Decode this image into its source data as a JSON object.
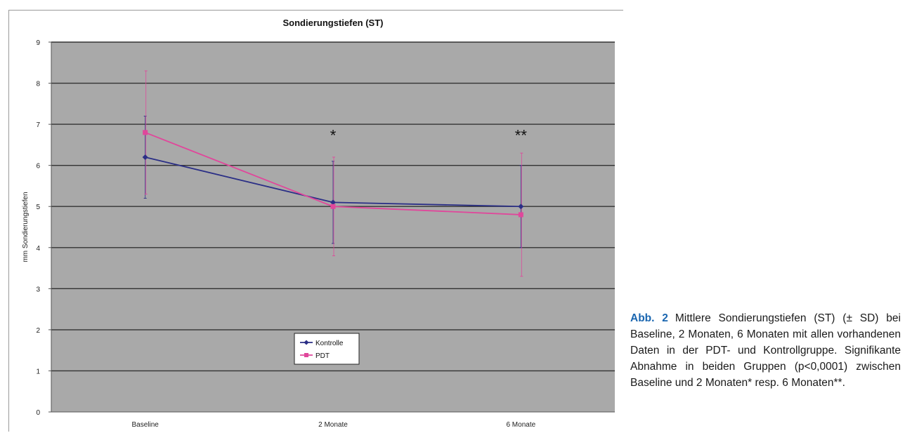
{
  "chart_data": {
    "type": "line",
    "title": "Sondierungstiefen (ST)",
    "xlabel": "",
    "ylabel": "mm Sondierungstiefen",
    "categories": [
      "Baseline",
      "2 Monate",
      "6 Monate"
    ],
    "ylim": [
      0,
      9
    ],
    "yticks": [
      "0",
      "1",
      "2",
      "3",
      "4",
      "5",
      "6",
      "7",
      "8",
      "9"
    ],
    "grid": true,
    "legend_position": "bottom-center",
    "annotations": [
      {
        "category": "2 Monate",
        "text": "*",
        "y": 6.6
      },
      {
        "category": "6 Monate",
        "text": "**",
        "y": 6.6
      }
    ],
    "series": [
      {
        "name": "Kontrolle",
        "color": "#2b2f86",
        "marker": "diamond",
        "values": [
          6.2,
          5.1,
          5.0
        ],
        "err_upper": [
          7.2,
          6.1,
          6.0
        ],
        "err_lower": [
          5.2,
          4.1,
          4.0
        ]
      },
      {
        "name": "PDT",
        "color": "#e0479b",
        "marker": "square",
        "values": [
          6.8,
          5.0,
          4.8
        ],
        "err_upper": [
          8.3,
          6.2,
          6.3
        ],
        "err_lower": [
          5.3,
          3.8,
          3.3
        ]
      }
    ],
    "colors": {
      "plot_bg": "#a9a9a9",
      "gridline": "#333333"
    }
  },
  "caption": {
    "label": "Abb. 2",
    "text": "Mittlere Sondierungstiefen (ST) (± SD) bei Baseline, 2 Monaten, 6 Monaten mit allen vorhandenen Daten in der PDT- und Kontroll­gruppe. Signifikante Abnahme in beiden Grup­pen (p<0,0001) zwischen Baseline und 2 Mo­naten* resp. 6 Monaten**."
  }
}
